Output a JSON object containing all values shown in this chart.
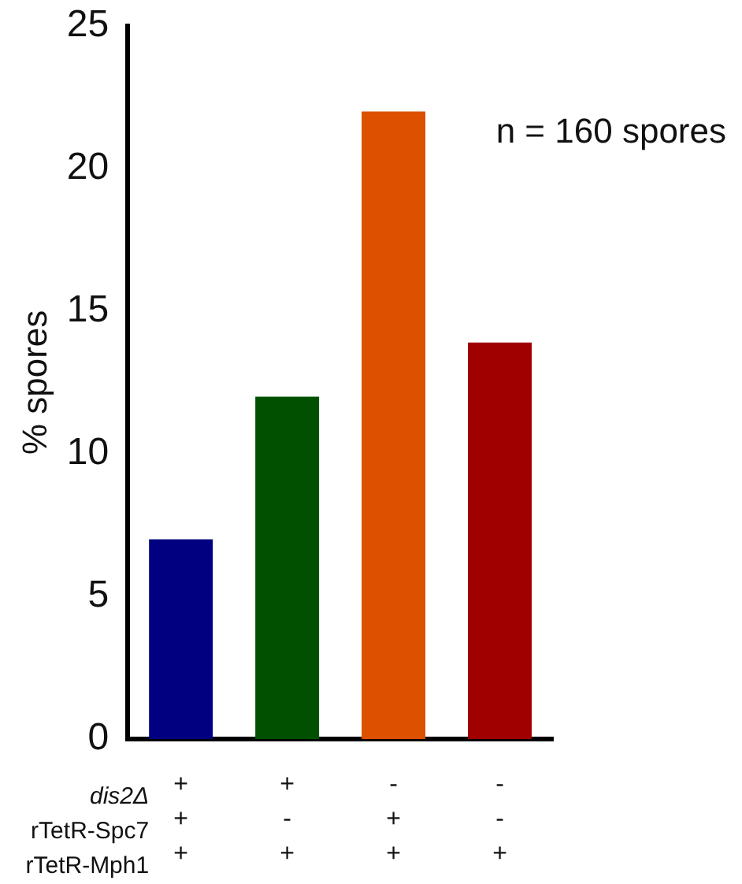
{
  "chart_data": {
    "type": "bar",
    "ylabel": "% spores",
    "categories": [
      "+\n+\n+",
      "+\n-\n+",
      "-\n+\n+",
      "-\n-\n+"
    ],
    "values": [
      7,
      12,
      22,
      13.9
    ],
    "colors": [
      "#000080",
      "#005000",
      "#dc5000",
      "#a00000"
    ],
    "ylim": [
      0,
      25
    ],
    "yticks": [
      0,
      5,
      10,
      15,
      20,
      25
    ],
    "grid": false,
    "legend": false,
    "annotations": [
      "n = 160 spores",
      "dis2Δ",
      "rTetR-Spc7",
      "rTetR-Mph1"
    ]
  }
}
